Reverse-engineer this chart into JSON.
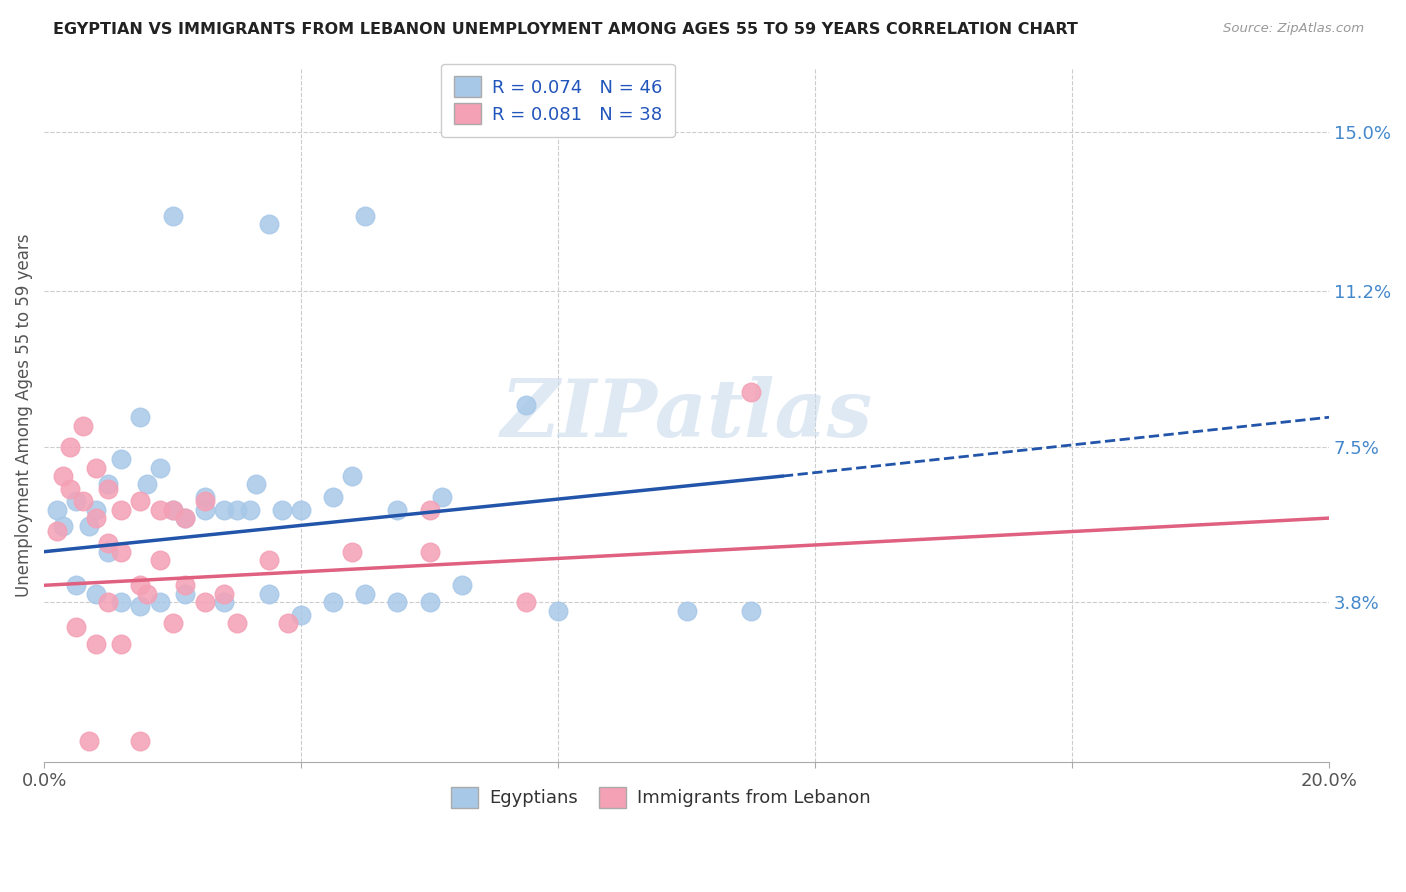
{
  "title": "EGYPTIAN VS IMMIGRANTS FROM LEBANON UNEMPLOYMENT AMONG AGES 55 TO 59 YEARS CORRELATION CHART",
  "source": "Source: ZipAtlas.com",
  "ylabel": "Unemployment Among Ages 55 to 59 years",
  "xlim": [
    0.0,
    0.2
  ],
  "ylim": [
    0.0,
    0.165
  ],
  "ytick_right_labels": [
    "15.0%",
    "11.2%",
    "7.5%",
    "3.8%"
  ],
  "ytick_right_values": [
    0.15,
    0.112,
    0.075,
    0.038
  ],
  "legend_r1": "R = 0.074",
  "legend_n1": "N = 46",
  "legend_r2": "R = 0.081",
  "legend_n2": "N = 38",
  "color_blue": "#a8c8e8",
  "color_pink": "#f4a0b5",
  "line_blue": "#2255aa",
  "line_pink": "#e06080",
  "watermark": "ZIPatlas",
  "blue_line_x0": 0.0,
  "blue_line_y0": 0.05,
  "blue_line_x1": 0.115,
  "blue_line_y1": 0.068,
  "blue_line_dash_x1": 0.2,
  "blue_line_dash_y1": 0.082,
  "pink_line_x0": 0.0,
  "pink_line_y0": 0.042,
  "pink_line_x1": 0.2,
  "pink_line_y1": 0.058,
  "blue_points_x": [
    0.02,
    0.035,
    0.05,
    0.002,
    0.005,
    0.008,
    0.01,
    0.012,
    0.015,
    0.018,
    0.02,
    0.022,
    0.025,
    0.028,
    0.03,
    0.033,
    0.037,
    0.04,
    0.045,
    0.048,
    0.055,
    0.062,
    0.005,
    0.008,
    0.012,
    0.015,
    0.018,
    0.022,
    0.028,
    0.035,
    0.04,
    0.05,
    0.06,
    0.1,
    0.075,
    0.003,
    0.007,
    0.01,
    0.016,
    0.025,
    0.032,
    0.045,
    0.055,
    0.065,
    0.08,
    0.11
  ],
  "blue_points_y": [
    0.13,
    0.128,
    0.13,
    0.06,
    0.062,
    0.06,
    0.066,
    0.072,
    0.082,
    0.07,
    0.06,
    0.058,
    0.063,
    0.06,
    0.06,
    0.066,
    0.06,
    0.06,
    0.063,
    0.068,
    0.06,
    0.063,
    0.042,
    0.04,
    0.038,
    0.037,
    0.038,
    0.04,
    0.038,
    0.04,
    0.035,
    0.04,
    0.038,
    0.036,
    0.085,
    0.056,
    0.056,
    0.05,
    0.066,
    0.06,
    0.06,
    0.038,
    0.038,
    0.042,
    0.036,
    0.036
  ],
  "pink_points_x": [
    0.003,
    0.004,
    0.006,
    0.008,
    0.01,
    0.012,
    0.015,
    0.018,
    0.02,
    0.022,
    0.025,
    0.002,
    0.004,
    0.006,
    0.008,
    0.01,
    0.012,
    0.015,
    0.018,
    0.022,
    0.028,
    0.035,
    0.048,
    0.06,
    0.075,
    0.11,
    0.005,
    0.008,
    0.012,
    0.02,
    0.03,
    0.038,
    0.007,
    0.015,
    0.01,
    0.016,
    0.025,
    0.06
  ],
  "pink_points_y": [
    0.068,
    0.075,
    0.08,
    0.07,
    0.065,
    0.06,
    0.062,
    0.06,
    0.06,
    0.058,
    0.062,
    0.055,
    0.065,
    0.062,
    0.058,
    0.052,
    0.05,
    0.042,
    0.048,
    0.042,
    0.04,
    0.048,
    0.05,
    0.05,
    0.038,
    0.088,
    0.032,
    0.028,
    0.028,
    0.033,
    0.033,
    0.033,
    0.005,
    0.005,
    0.038,
    0.04,
    0.038,
    0.06
  ]
}
